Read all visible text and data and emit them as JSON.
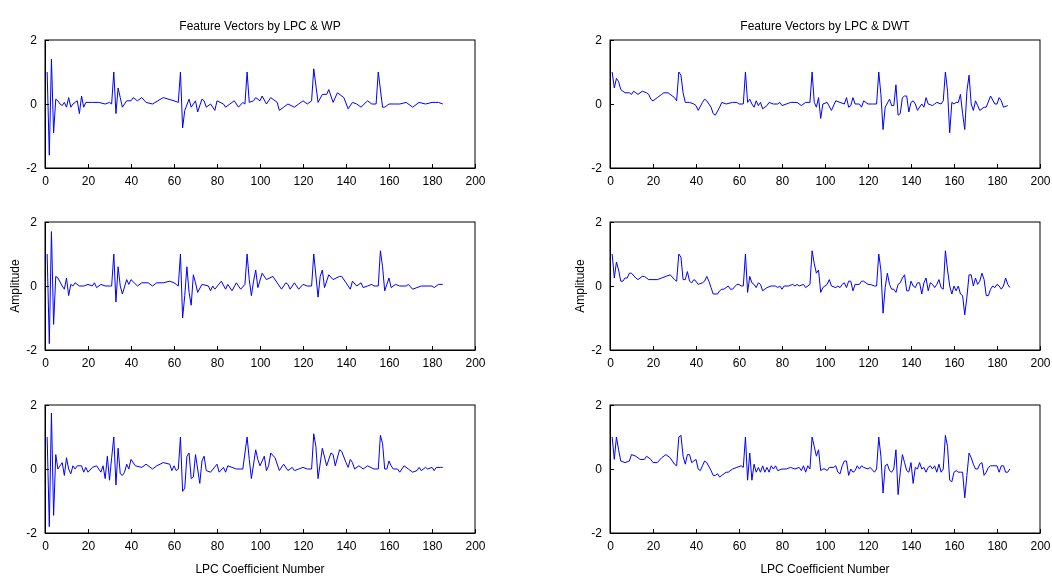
{
  "chart_data": [
    {
      "type": "line",
      "title": "Feature Vectors by LPC & WP",
      "xlim": [
        0,
        200
      ],
      "xticks": [
        0,
        20,
        40,
        60,
        80,
        100,
        120,
        140,
        160,
        180,
        200
      ],
      "ylim": [
        -2,
        2
      ],
      "yticks": [
        -2,
        0,
        2
      ],
      "series": [
        {
          "color": "#0000ff",
          "x": [
            1,
            2,
            3,
            4,
            5,
            6,
            7,
            8,
            9,
            10,
            11,
            12,
            13,
            14,
            15,
            16,
            17,
            18,
            19,
            22,
            25,
            28,
            30,
            31,
            32,
            33,
            34,
            35,
            36,
            38,
            40,
            41,
            43,
            45,
            47,
            50,
            55,
            60,
            62,
            63,
            64,
            65,
            67,
            68,
            70,
            71,
            73,
            74,
            75,
            77,
            79,
            80,
            83,
            84,
            86,
            88,
            90,
            92,
            93,
            94,
            95,
            97,
            98,
            100,
            101,
            103,
            105,
            108,
            109,
            111,
            113,
            116,
            118,
            120,
            122,
            124,
            125,
            127,
            129,
            131,
            132,
            134,
            136,
            139,
            141,
            143,
            145,
            147,
            150,
            152,
            154,
            155,
            157,
            158,
            160,
            163,
            165,
            168,
            171,
            174,
            177,
            180,
            183,
            185
          ],
          "values": [
            1.0,
            -1.6,
            1.4,
            -0.9,
            0.15,
            0.1,
            0.0,
            -0.05,
            0.05,
            -0.1,
            0.2,
            -0.1,
            0,
            0.05,
            0.1,
            -0.3,
            0.25,
            -0.1,
            0.05,
            0.05,
            0.05,
            0,
            0.05,
            0,
            1.0,
            -0.3,
            0.5,
            0.2,
            -0.1,
            0.1,
            0.1,
            0.2,
            0.1,
            0.2,
            0.05,
            0.0,
            0.2,
            0.1,
            0.05,
            1.0,
            -0.75,
            -0.2,
            0.15,
            -0.1,
            0.1,
            -0.25,
            0.15,
            0.1,
            -0.1,
            0,
            -0.2,
            0.1,
            0.0,
            -0.1,
            0.0,
            0.1,
            -0.1,
            0.05,
            0,
            1.0,
            0.05,
            0.1,
            0.2,
            0.1,
            0.25,
            0.0,
            0.2,
            0.05,
            -0.2,
            -0.1,
            0.0,
            -0.1,
            0,
            0.1,
            0,
            0.1,
            1.1,
            0.05,
            0.3,
            0.3,
            0.45,
            0.05,
            0.35,
            0.2,
            -0.15,
            0.05,
            0,
            -0.1,
            0.1,
            0,
            0.0,
            1.0,
            -0.1,
            -0.1,
            0,
            0,
            0,
            0.05,
            -0.1,
            0.05,
            0,
            0.05,
            0.05,
            0.0
          ]
        }
      ]
    },
    {
      "type": "line",
      "title": "Feature Vectors by LPC & DWT",
      "xlim": [
        0,
        200
      ],
      "xticks": [
        0,
        20,
        40,
        60,
        80,
        100,
        120,
        140,
        160,
        180,
        200
      ],
      "ylim": [
        -2,
        2
      ],
      "yticks": [
        -2,
        0,
        2
      ],
      "series": [
        {
          "color": "#0000ff",
          "x": [
            1,
            2,
            3,
            4,
            5,
            7,
            9,
            10,
            11,
            12,
            13,
            15,
            17,
            18,
            19,
            20,
            22,
            24,
            25,
            27,
            30,
            31,
            32,
            33,
            34,
            35,
            37,
            39,
            40,
            41,
            43,
            44,
            45,
            47,
            48,
            49,
            51,
            52,
            54,
            57,
            59,
            60,
            62,
            63,
            64,
            65,
            66,
            67,
            68,
            69,
            70,
            71,
            73,
            74,
            76,
            78,
            79,
            80,
            82,
            84,
            87,
            89,
            91,
            93,
            94,
            95,
            96,
            97,
            98,
            99,
            101,
            103,
            105,
            107,
            109,
            110,
            111,
            112,
            113,
            114,
            116,
            117,
            118,
            120,
            122,
            124,
            125,
            126,
            127,
            128,
            130,
            131,
            132,
            133,
            134,
            135,
            136,
            137,
            138,
            139,
            140,
            141,
            142,
            143,
            145,
            146,
            147,
            148,
            150,
            151,
            152,
            154,
            155,
            156,
            157,
            158,
            159,
            160,
            161,
            162,
            163,
            164,
            165,
            166,
            167,
            168,
            169,
            170,
            171,
            172,
            174,
            175,
            177,
            179,
            180,
            181,
            182,
            183,
            185
          ],
          "values": [
            1.0,
            0.5,
            0.8,
            0.7,
            0.45,
            0.35,
            0.35,
            0.3,
            0.4,
            0.35,
            0.3,
            0.4,
            0.35,
            0.3,
            0.15,
            0.1,
            0.2,
            0.3,
            0.35,
            0.35,
            0.2,
            0.1,
            1.0,
            0.9,
            0.35,
            0.05,
            0.05,
            0,
            -0.05,
            -0.2,
            0.05,
            0.15,
            0.1,
            -0.1,
            -0.3,
            -0.35,
            -0.1,
            0.05,
            0,
            0.05,
            0.05,
            0,
            0,
            1.0,
            0.05,
            0.15,
            0,
            -0.1,
            0.1,
            -0.05,
            0.05,
            -0.15,
            -0.05,
            0.05,
            0,
            0,
            0.05,
            -0.05,
            0,
            0.05,
            0.05,
            -0.05,
            0.05,
            0.05,
            1.0,
            0.05,
            -0.1,
            0.2,
            -0.45,
            0,
            0.05,
            -0.2,
            0.1,
            0.05,
            0,
            0.2,
            -0.1,
            -0.05,
            0.2,
            0,
            0,
            -0.1,
            0.1,
            0,
            0,
            0,
            1.0,
            0.3,
            -0.8,
            -0.1,
            0.15,
            -0.05,
            -0.05,
            0.6,
            -0.35,
            -0.3,
            0.2,
            0.25,
            0.25,
            -0.25,
            0.05,
            0.1,
            0,
            -0.2,
            0,
            -0.1,
            0.2,
            0,
            -0.05,
            0,
            0.05,
            0,
            0.1,
            1.0,
            0.4,
            -0.9,
            0.05,
            0,
            0.05,
            0.05,
            0.3,
            -0.3,
            -0.8,
            0.4,
            0.9,
            0,
            -0.2,
            0.1,
            -0.05,
            -0.2,
            -0.1,
            -0.1,
            0.25,
            0,
            0,
            0.2,
            0.1,
            -0.1,
            -0.05
          ]
        }
      ]
    },
    {
      "type": "line",
      "ylabel": "Amplitude",
      "xlim": [
        0,
        200
      ],
      "xticks": [
        0,
        20,
        40,
        60,
        80,
        100,
        120,
        140,
        160,
        180,
        200
      ],
      "ylim": [
        -2,
        2
      ],
      "yticks": [
        -2,
        0,
        2
      ],
      "series": [
        {
          "color": "#0000ff",
          "x": [
            1,
            2,
            3,
            4,
            5,
            6,
            8,
            9,
            10,
            11,
            12,
            13,
            14,
            16,
            18,
            20,
            22,
            23,
            24,
            26,
            28,
            30,
            31,
            32,
            33,
            34,
            35,
            36,
            38,
            39,
            40,
            43,
            45,
            48,
            50,
            52,
            55,
            58,
            60,
            61,
            62,
            63,
            64,
            65,
            66,
            67,
            68,
            69,
            70,
            71,
            73,
            76,
            77,
            78,
            79,
            82,
            84,
            85,
            87,
            89,
            91,
            93,
            94,
            95,
            96,
            97,
            98,
            99,
            101,
            103,
            106,
            108,
            110,
            112,
            113,
            114,
            116,
            118,
            120,
            122,
            124,
            125,
            127,
            128,
            129,
            130,
            132,
            134,
            137,
            138,
            140,
            141,
            142,
            143,
            145,
            147,
            148,
            150,
            152,
            153,
            155,
            156,
            157,
            158,
            159,
            160,
            161,
            163,
            165,
            168,
            169,
            171,
            173,
            175,
            178,
            180,
            181,
            183,
            185
          ],
          "values": [
            1.0,
            -1.8,
            1.7,
            -1.2,
            0.3,
            0.25,
            0.0,
            -0.1,
            0.25,
            -0.3,
            0.05,
            0,
            0.1,
            0,
            0,
            0.05,
            0,
            0.1,
            -0.05,
            0.05,
            0,
            0,
            0,
            1.0,
            -0.5,
            0.6,
            0,
            -0.25,
            0.2,
            0.05,
            0.2,
            0,
            0.1,
            0.1,
            0,
            0.1,
            0.1,
            0.15,
            0.1,
            0.05,
            0,
            1.0,
            -1.0,
            -0.3,
            0.6,
            -0.2,
            -0.6,
            0.35,
            0.1,
            -0.2,
            0.05,
            0,
            -0.15,
            0,
            -0.1,
            0.15,
            -0.1,
            0.05,
            -0.15,
            0.1,
            -0.1,
            0.05,
            1.0,
            0.2,
            -0.3,
            0.15,
            0.5,
            -0.05,
            0.4,
            0.2,
            0.3,
            0.1,
            -0.1,
            0.1,
            0.05,
            -0.1,
            0.1,
            -0.1,
            0.05,
            0,
            0,
            1.0,
            -0.35,
            0.3,
            0.5,
            -0.05,
            0.35,
            0.2,
            0.3,
            0.3,
            0.1,
            0,
            -0.1,
            0.15,
            0,
            0.1,
            -0.05,
            0,
            0.05,
            0,
            0,
            1.1,
            0.6,
            -0.15,
            0.05,
            0.25,
            -0.05,
            0.05,
            0,
            0,
            0.05,
            -0.1,
            -0.05,
            0,
            0,
            0,
            -0.05,
            0.05,
            0.05
          ]
        }
      ]
    },
    {
      "type": "line",
      "ylabel": "Amplitude",
      "xlim": [
        0,
        200
      ],
      "xticks": [
        0,
        20,
        40,
        60,
        80,
        100,
        120,
        140,
        160,
        180,
        200
      ],
      "ylim": [
        -2,
        2
      ],
      "yticks": [
        -2,
        0,
        2
      ],
      "series": [
        {
          "color": "#0000ff",
          "x": [
            1,
            2,
            3,
            4,
            5,
            6,
            7,
            8,
            9,
            10,
            12,
            13,
            15,
            16,
            18,
            20,
            22,
            24,
            26,
            28,
            30,
            31,
            32,
            33,
            34,
            35,
            36,
            37,
            38,
            39,
            40,
            41,
            43,
            44,
            45,
            46,
            47,
            48,
            50,
            51,
            52,
            53,
            55,
            56,
            57,
            59,
            60,
            61,
            62,
            63,
            64,
            65,
            66,
            67,
            68,
            69,
            70,
            71,
            73,
            75,
            77,
            78,
            79,
            80,
            81,
            83,
            85,
            86,
            87,
            88,
            90,
            91,
            93,
            94,
            95,
            96,
            97,
            98,
            99,
            101,
            102,
            103,
            105,
            106,
            107,
            108,
            109,
            110,
            111,
            112,
            113,
            114,
            116,
            117,
            118,
            120,
            121,
            123,
            124,
            125,
            126,
            127,
            128,
            129,
            130,
            131,
            132,
            133,
            134,
            135,
            136,
            137,
            138,
            139,
            140,
            141,
            142,
            143,
            144,
            145,
            146,
            147,
            148,
            149,
            150,
            151,
            152,
            153,
            154,
            155,
            156,
            157,
            158,
            159,
            160,
            161,
            162,
            163,
            164,
            165,
            166,
            167,
            168,
            169,
            170,
            171,
            172,
            173,
            174,
            175,
            176,
            177,
            178,
            179,
            180,
            181,
            182,
            183,
            184,
            185,
            186
          ],
          "values": [
            1.0,
            0.25,
            0.75,
            0.5,
            0.15,
            0.15,
            0.25,
            0.25,
            0.4,
            0.4,
            0.25,
            0.2,
            0.3,
            0.3,
            0.2,
            0.2,
            0.2,
            0.25,
            0.3,
            0.35,
            0.2,
            0.15,
            1.0,
            0.9,
            0.2,
            0.2,
            0.45,
            0.15,
            0.1,
            0.2,
            0.15,
            0.05,
            0.1,
            0.15,
            0.3,
            0.15,
            -0.05,
            -0.25,
            -0.25,
            -0.15,
            -0.1,
            -0.1,
            0,
            -0.1,
            -0.1,
            0.05,
            0.05,
            0,
            0,
            1.0,
            -0.2,
            0.3,
            0.1,
            0.05,
            -0.05,
            0.1,
            0.05,
            -0.15,
            -0.05,
            0,
            0,
            -0.05,
            0,
            -0.1,
            0,
            0,
            0.05,
            0,
            0.05,
            0,
            0.05,
            -0.05,
            0.05,
            1.1,
            0.7,
            0.4,
            0.5,
            -0.2,
            -0.05,
            0.05,
            0.2,
            0,
            -0.05,
            0,
            -0.05,
            0.05,
            0.1,
            -0.05,
            0.15,
            0.15,
            -0.15,
            0.05,
            0.05,
            0.15,
            0.15,
            0.05,
            0.05,
            0,
            0,
            1.0,
            0.5,
            -0.85,
            -0.05,
            0.4,
            0.05,
            -0.1,
            -0.1,
            -0.2,
            0.05,
            0.1,
            0.25,
            0.35,
            -0.15,
            -0.15,
            0.15,
            0,
            -0.05,
            0.1,
            0.1,
            -0.25,
            0.1,
            0.25,
            -0.15,
            0.1,
            0.05,
            -0.05,
            0.05,
            0.2,
            -0.05,
            -0.1,
            1.1,
            0.5,
            0,
            -0.25,
            0,
            -0.15,
            0,
            -0.25,
            -0.3,
            -0.9,
            -0.35,
            0.35,
            0.35,
            0,
            0.25,
            0.05,
            0.15,
            0.4,
            0.2,
            -0.3,
            -0.3,
            -0.1,
            0,
            -0.05,
            0.05,
            0,
            -0.1,
            0,
            0.25,
            0.05,
            -0.05
          ]
        }
      ]
    },
    {
      "type": "line",
      "xlabel": "LPC Coefficient Number",
      "xlim": [
        0,
        200
      ],
      "xticks": [
        0,
        20,
        40,
        60,
        80,
        100,
        120,
        140,
        160,
        180,
        200
      ],
      "ylim": [
        -2,
        2
      ],
      "yticks": [
        -2,
        0,
        2
      ],
      "series": [
        {
          "color": "#0000ff",
          "x": [
            1,
            2,
            3,
            4,
            5,
            6,
            7,
            8,
            9,
            10,
            11,
            12,
            13,
            14,
            15,
            17,
            18,
            19,
            20,
            22,
            24,
            25,
            26,
            27,
            28,
            29,
            30,
            31,
            32,
            33,
            34,
            35,
            36,
            37,
            38,
            39,
            40,
            42,
            45,
            47,
            50,
            52,
            55,
            58,
            59,
            60,
            61,
            62,
            63,
            64,
            65,
            66,
            67,
            68,
            69,
            70,
            71,
            72,
            73,
            74,
            75,
            77,
            80,
            81,
            83,
            84,
            85,
            87,
            89,
            92,
            94,
            95,
            96,
            98,
            99,
            100,
            102,
            103,
            104,
            105,
            107,
            109,
            111,
            113,
            115,
            116,
            118,
            120,
            122,
            124,
            125,
            126,
            127,
            129,
            131,
            133,
            134,
            135,
            137,
            138,
            140,
            141,
            142,
            143,
            144,
            146,
            148,
            150,
            153,
            155,
            156,
            157,
            158,
            159,
            160,
            161,
            162,
            164,
            165,
            167,
            169,
            171,
            173,
            174,
            175,
            177,
            178,
            180,
            181,
            182,
            184,
            185
          ],
          "values": [
            1.0,
            -1.8,
            1.75,
            -1.45,
            0.45,
            0,
            0.1,
            0.2,
            -0.2,
            0.35,
            0,
            -0.15,
            0.1,
            0,
            0.1,
            0.1,
            -0.1,
            0.05,
            -0.1,
            0.05,
            0.1,
            0,
            -0.1,
            0.1,
            -0.3,
            0.4,
            -0.35,
            0.35,
            1.0,
            -0.5,
            0.65,
            -0.15,
            -0.2,
            -0.1,
            0.15,
            0,
            0.3,
            0.1,
            0.05,
            0.15,
            0,
            0.1,
            0.2,
            0.15,
            -0.05,
            0.1,
            -0.05,
            0,
            1.0,
            -0.7,
            -0.6,
            0.4,
            0.5,
            -0.3,
            -0.25,
            0.45,
            0,
            -0.45,
            0.25,
            0.4,
            -0.05,
            -0.1,
            0.15,
            -0.1,
            0.05,
            -0.1,
            0.1,
            0.05,
            0,
            0,
            1.0,
            0.3,
            -0.3,
            0.6,
            0.3,
            0.1,
            0.4,
            -0.05,
            0.1,
            0.5,
            0.35,
            -0.05,
            0.15,
            -0.05,
            0.05,
            -0.05,
            0,
            0.05,
            0,
            0,
            1.1,
            0.7,
            -0.3,
            0.65,
            0.1,
            0.5,
            0.45,
            0.1,
            0.6,
            0.55,
            0.2,
            0.05,
            0.3,
            0.2,
            0,
            0.1,
            0,
            0.1,
            0,
            0,
            1.05,
            0.8,
            0,
            0,
            0.25,
            0.1,
            0,
            0,
            -0.1,
            0.1,
            0,
            -0.1,
            -0.05,
            0.05,
            -0.05,
            0.05,
            0,
            0.05,
            -0.05,
            0.05,
            0.05,
            0.05
          ]
        }
      ]
    },
    {
      "type": "line",
      "xlabel": "LPC Coefficient Number",
      "xlim": [
        0,
        200
      ],
      "xticks": [
        0,
        20,
        40,
        60,
        80,
        100,
        120,
        140,
        160,
        180,
        200
      ],
      "ylim": [
        -2,
        2
      ],
      "yticks": [
        -2,
        0,
        2
      ],
      "series": [
        {
          "color": "#0000ff",
          "x": [
            1,
            2,
            3,
            4,
            5,
            7,
            9,
            10,
            12,
            14,
            16,
            17,
            19,
            20,
            22,
            24,
            26,
            28,
            30,
            31,
            32,
            33,
            34,
            35,
            36,
            37,
            38,
            39,
            40,
            41,
            42,
            43,
            44,
            45,
            47,
            48,
            49,
            50,
            51,
            52,
            54,
            55,
            57,
            59,
            61,
            62,
            63,
            64,
            65,
            66,
            67,
            68,
            69,
            70,
            71,
            72,
            73,
            74,
            75,
            76,
            77,
            78,
            80,
            82,
            84,
            86,
            88,
            89,
            90,
            91,
            92,
            93,
            94,
            95,
            96,
            97,
            98,
            99,
            100,
            101,
            102,
            104,
            105,
            106,
            107,
            108,
            109,
            110,
            111,
            112,
            113,
            114,
            115,
            116,
            117,
            118,
            120,
            121,
            123,
            124,
            125,
            126,
            127,
            128,
            129,
            130,
            131,
            132,
            133,
            134,
            135,
            136,
            137,
            138,
            139,
            140,
            141,
            142,
            143,
            144,
            145,
            146,
            147,
            148,
            149,
            150,
            151,
            152,
            153,
            154,
            155,
            156,
            157,
            158,
            159,
            160,
            161,
            162,
            163,
            164,
            165,
            166,
            167,
            168,
            169,
            170,
            171,
            172,
            173,
            174,
            175,
            176,
            177,
            178,
            180,
            181,
            182,
            183,
            184,
            185,
            186
          ],
          "values": [
            1.0,
            0.3,
            1.0,
            0.6,
            0.25,
            0.2,
            0.25,
            0.45,
            0.4,
            0.3,
            0.3,
            0.4,
            0.3,
            0.2,
            0.2,
            0.35,
            0.45,
            0.35,
            0.15,
            0.1,
            1.0,
            1.05,
            0.4,
            0.15,
            0.45,
            0.45,
            0.2,
            0.25,
            0.3,
            0,
            -0.05,
            0.1,
            0.25,
            0.2,
            -0.05,
            -0.2,
            -0.2,
            -0.15,
            -0.25,
            -0.2,
            -0.1,
            -0.1,
            0,
            0.05,
            0.1,
            0.05,
            1.0,
            -0.35,
            0.5,
            -0.35,
            0.15,
            -0.1,
            0.05,
            -0.1,
            0.1,
            -0.1,
            0.05,
            -0.1,
            0.1,
            0,
            0.1,
            -0.05,
            0,
            0,
            0.05,
            0,
            0.05,
            -0.05,
            0.1,
            -0.1,
            0.1,
            0,
            1.0,
            0.7,
            0.4,
            0.6,
            -0.05,
            0,
            0,
            -0.05,
            0.05,
            0.05,
            0.1,
            -0.1,
            -0.15,
            0.1,
            0.25,
            0.25,
            -0.2,
            0,
            -0.1,
            -0.05,
            0.1,
            0,
            0.1,
            0.05,
            0,
            0.05,
            -0.1,
            0,
            1.0,
            0.4,
            -0.75,
            0.1,
            0.15,
            -0.05,
            -0.1,
            0,
            0.6,
            -0.8,
            -0.1,
            0.45,
            0.2,
            -0.05,
            -0.1,
            0.2,
            -0.45,
            0.05,
            0,
            0.2,
            0,
            0.05,
            -0.1,
            0.05,
            0.1,
            0,
            0.1,
            -0.1,
            0.15,
            -0.1,
            0,
            1.05,
            0.7,
            -0.35,
            -0.4,
            -0.1,
            -0.05,
            -0.1,
            -0.1,
            -0.1,
            -0.9,
            -0.2,
            0.5,
            0.35,
            0.15,
            0,
            0,
            0.15,
            0.2,
            -0.2,
            -0.1,
            0.05,
            0.1,
            0.1,
            0.1,
            -0.1,
            0.1,
            0.1,
            -0.1,
            -0.1,
            0
          ]
        }
      ]
    }
  ]
}
